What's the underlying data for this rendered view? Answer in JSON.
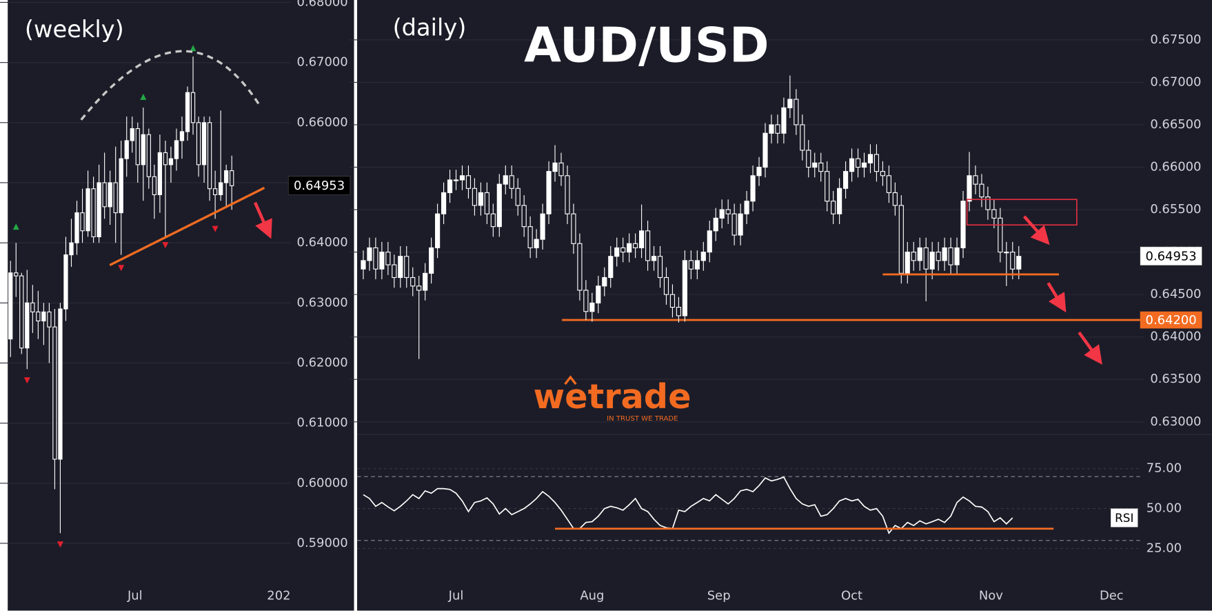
{
  "chart_data": [
    {
      "type": "candlestick",
      "title": "(weekly)",
      "open": [
        0.624,
        0.635,
        0.6345,
        0.6225,
        0.63,
        0.6285,
        0.627,
        0.6285,
        0.626,
        0.604,
        0.629,
        0.638,
        0.64,
        0.645,
        0.642,
        0.649,
        0.641,
        0.65,
        0.646,
        0.65,
        0.645,
        0.654,
        0.657,
        0.659,
        0.653,
        0.658,
        0.651,
        0.648,
        0.655,
        0.653,
        0.654,
        0.657,
        0.6585,
        0.665,
        0.66,
        0.653,
        0.66,
        0.649,
        0.648,
        0.65,
        0.652
      ],
      "high": [
        0.637,
        0.64,
        0.635,
        0.6355,
        0.633,
        0.632,
        0.63,
        0.63,
        0.629,
        0.63,
        0.641,
        0.644,
        0.647,
        0.649,
        0.652,
        0.651,
        0.653,
        0.655,
        0.652,
        0.656,
        0.657,
        0.661,
        0.661,
        0.66,
        0.6625,
        0.659,
        0.653,
        0.658,
        0.657,
        0.656,
        0.659,
        0.661,
        0.666,
        0.671,
        0.661,
        0.661,
        0.661,
        0.652,
        0.662,
        0.653,
        0.6545
      ],
      "low": [
        0.621,
        0.631,
        0.6215,
        0.619,
        0.625,
        0.624,
        0.623,
        0.62,
        0.599,
        0.5917,
        0.627,
        0.636,
        0.638,
        0.64,
        0.641,
        0.64,
        0.64,
        0.644,
        0.643,
        0.64,
        0.638,
        0.651,
        0.655,
        0.65,
        0.647,
        0.649,
        0.644,
        0.645,
        0.641,
        0.65,
        0.652,
        0.654,
        0.657,
        0.658,
        0.651,
        0.65,
        0.647,
        0.644,
        0.647,
        0.646,
        0.6455
      ],
      "close": [
        0.635,
        0.6345,
        0.6225,
        0.63,
        0.6285,
        0.627,
        0.6285,
        0.626,
        0.604,
        0.629,
        0.638,
        0.64,
        0.645,
        0.642,
        0.649,
        0.641,
        0.65,
        0.646,
        0.65,
        0.645,
        0.654,
        0.657,
        0.659,
        0.653,
        0.658,
        0.651,
        0.648,
        0.655,
        0.653,
        0.654,
        0.657,
        0.6585,
        0.665,
        0.66,
        0.653,
        0.66,
        0.649,
        0.648,
        0.65,
        0.652,
        0.6495
      ],
      "color_up": "#ffffff",
      "color_down": "#1c1c28",
      "wick_color": "#ffffff",
      "markers": [
        {
          "direction": "up",
          "color": "#22a845",
          "x": [
            1,
            24,
            33
          ],
          "y": [
            0.6427,
            0.6643,
            0.6724
          ]
        },
        {
          "direction": "down",
          "color": "#e3202e",
          "x": [
            3,
            9,
            20,
            28,
            37
          ],
          "y": [
            0.6171,
            0.5898,
            0.6358,
            0.6396,
            0.6423
          ]
        }
      ],
      "xlim": [
        -0.5,
        50.5
      ],
      "xticks": [
        {
          "value": 22.5,
          "label": "Jul"
        },
        {
          "value": 48.5,
          "label": "202"
        }
      ],
      "ylim": [
        0.5788,
        0.6804
      ],
      "yticks": [
        {
          "value": 0.59,
          "label": "0.59000"
        },
        {
          "value": 0.6,
          "label": "0.60000"
        },
        {
          "value": 0.61,
          "label": "0.61000"
        },
        {
          "value": 0.62,
          "label": "0.62000"
        },
        {
          "value": 0.63,
          "label": "0.63000"
        },
        {
          "value": 0.64,
          "label": "0.64000"
        },
        {
          "value": 0.65,
          "label": "0.65000"
        },
        {
          "value": 0.66,
          "label": "0.66000"
        },
        {
          "value": 0.67,
          "label": "0.67000"
        },
        {
          "value": 0.68,
          "label": "0.68000"
        }
      ],
      "grid": true,
      "last_price": {
        "value": 0.64953,
        "label": "0.64953"
      }
    },
    {
      "type": "candlestick",
      "title": "(daily)",
      "symbol": "AUD/USD",
      "open": [
        0.648,
        0.649,
        0.6505,
        0.648,
        0.65,
        0.6485,
        0.647,
        0.6495,
        0.647,
        0.646,
        0.6455,
        0.6475,
        0.6505,
        0.6545,
        0.657,
        0.6585,
        0.6585,
        0.659,
        0.6575,
        0.6555,
        0.657,
        0.6545,
        0.653,
        0.658,
        0.659,
        0.6575,
        0.6555,
        0.653,
        0.6505,
        0.6515,
        0.6545,
        0.6595,
        0.6605,
        0.659,
        0.6545,
        0.651,
        0.6455,
        0.643,
        0.644,
        0.646,
        0.647,
        0.6495,
        0.6505,
        0.65,
        0.651,
        0.6505,
        0.6525,
        0.649,
        0.6495,
        0.647,
        0.645,
        0.6435,
        0.6425,
        0.649,
        0.648,
        0.649,
        0.65,
        0.6525,
        0.654,
        0.655,
        0.6545,
        0.652,
        0.6545,
        0.656,
        0.659,
        0.66,
        0.664,
        0.665,
        0.664,
        0.667,
        0.668,
        0.665,
        0.662,
        0.66,
        0.6605,
        0.6595,
        0.656,
        0.6545,
        0.6575,
        0.6595,
        0.661,
        0.66,
        0.6605,
        0.6615,
        0.6595,
        0.659,
        0.657,
        0.6555,
        0.6475,
        0.65,
        0.649,
        0.6505,
        0.648,
        0.65,
        0.649,
        0.6505,
        0.6485,
        0.6505,
        0.656,
        0.659,
        0.658,
        0.6565,
        0.655,
        0.654,
        0.65,
        0.65,
        0.648
      ],
      "high": [
        0.6502,
        0.6517,
        0.6517,
        0.6512,
        0.6512,
        0.6497,
        0.6507,
        0.6507,
        0.6482,
        0.6472,
        0.6487,
        0.6517,
        0.6557,
        0.6582,
        0.6597,
        0.6597,
        0.6602,
        0.6602,
        0.6587,
        0.6582,
        0.6582,
        0.6557,
        0.6592,
        0.6602,
        0.6602,
        0.6587,
        0.6567,
        0.6542,
        0.6527,
        0.6557,
        0.6607,
        0.6626,
        0.6617,
        0.6602,
        0.6557,
        0.6522,
        0.6467,
        0.6452,
        0.6472,
        0.6482,
        0.6507,
        0.6517,
        0.6517,
        0.6522,
        0.6522,
        0.6556,
        0.6537,
        0.6507,
        0.6507,
        0.6482,
        0.6462,
        0.6447,
        0.6502,
        0.6502,
        0.6502,
        0.6512,
        0.6537,
        0.6552,
        0.6562,
        0.6562,
        0.6557,
        0.6557,
        0.6572,
        0.6602,
        0.6612,
        0.6652,
        0.6662,
        0.6662,
        0.6682,
        0.6708,
        0.6692,
        0.6662,
        0.6632,
        0.6617,
        0.6617,
        0.6607,
        0.6572,
        0.6587,
        0.6607,
        0.6622,
        0.6622,
        0.6617,
        0.6627,
        0.6627,
        0.6607,
        0.6602,
        0.6582,
        0.6567,
        0.6512,
        0.6512,
        0.6517,
        0.6517,
        0.6512,
        0.6512,
        0.6517,
        0.6517,
        0.6517,
        0.6572,
        0.6618,
        0.6602,
        0.6592,
        0.6577,
        0.6562,
        0.6552,
        0.6512,
        0.6512,
        0.6507
      ],
      "low": [
        0.6468,
        0.6478,
        0.6468,
        0.6468,
        0.6473,
        0.6458,
        0.6458,
        0.6458,
        0.6448,
        0.6374,
        0.6443,
        0.6463,
        0.6493,
        0.6533,
        0.6558,
        0.6573,
        0.6573,
        0.6563,
        0.6543,
        0.6543,
        0.6533,
        0.6518,
        0.6518,
        0.6568,
        0.6563,
        0.6543,
        0.6518,
        0.6493,
        0.6493,
        0.6503,
        0.6533,
        0.6583,
        0.6578,
        0.6533,
        0.6498,
        0.6443,
        0.642,
        0.6418,
        0.6428,
        0.6448,
        0.6458,
        0.6483,
        0.6488,
        0.6488,
        0.6493,
        0.6493,
        0.6478,
        0.6478,
        0.6458,
        0.6438,
        0.6423,
        0.6417,
        0.6418,
        0.6468,
        0.6468,
        0.6478,
        0.6488,
        0.6513,
        0.6528,
        0.6533,
        0.6508,
        0.6508,
        0.6533,
        0.6548,
        0.6578,
        0.6588,
        0.6628,
        0.6628,
        0.6628,
        0.6658,
        0.6638,
        0.6608,
        0.6588,
        0.6588,
        0.6583,
        0.6548,
        0.6533,
        0.6533,
        0.6563,
        0.6583,
        0.6588,
        0.6588,
        0.6593,
        0.6583,
        0.6578,
        0.6558,
        0.6543,
        0.6463,
        0.6463,
        0.6478,
        0.6478,
        0.6442,
        0.6468,
        0.6478,
        0.6478,
        0.6473,
        0.6473,
        0.6493,
        0.6548,
        0.6568,
        0.6553,
        0.6538,
        0.6528,
        0.6488,
        0.646,
        0.6468,
        0.6468
      ],
      "close": [
        0.649,
        0.6505,
        0.648,
        0.65,
        0.6485,
        0.647,
        0.6495,
        0.647,
        0.646,
        0.6455,
        0.6475,
        0.6505,
        0.6545,
        0.657,
        0.6585,
        0.6585,
        0.659,
        0.6575,
        0.6555,
        0.657,
        0.6545,
        0.653,
        0.658,
        0.659,
        0.6575,
        0.6555,
        0.653,
        0.6505,
        0.6515,
        0.6545,
        0.6595,
        0.6605,
        0.659,
        0.6545,
        0.651,
        0.6455,
        0.643,
        0.644,
        0.646,
        0.647,
        0.6495,
        0.6505,
        0.65,
        0.651,
        0.6505,
        0.6525,
        0.649,
        0.6495,
        0.647,
        0.645,
        0.6435,
        0.6425,
        0.649,
        0.648,
        0.649,
        0.65,
        0.6525,
        0.654,
        0.655,
        0.6545,
        0.652,
        0.6545,
        0.656,
        0.659,
        0.66,
        0.664,
        0.665,
        0.664,
        0.667,
        0.668,
        0.665,
        0.662,
        0.66,
        0.6605,
        0.6595,
        0.656,
        0.6545,
        0.6575,
        0.6595,
        0.661,
        0.66,
        0.6605,
        0.6615,
        0.6595,
        0.659,
        0.657,
        0.6555,
        0.6475,
        0.65,
        0.649,
        0.6505,
        0.648,
        0.65,
        0.649,
        0.6505,
        0.6485,
        0.6505,
        0.656,
        0.659,
        0.658,
        0.6565,
        0.655,
        0.654,
        0.65,
        0.65,
        0.648,
        0.6495
      ],
      "color_up": "#ffffff",
      "color_down": "#1c1c28",
      "wick_color": "#ffffff",
      "xlim": [
        -1,
        125
      ],
      "xticks": [
        {
          "value": 15,
          "label": "Jul"
        },
        {
          "value": 37,
          "label": "Aug"
        },
        {
          "value": 57.5,
          "label": "Sep"
        },
        {
          "value": 79,
          "label": "Oct"
        },
        {
          "value": 101.5,
          "label": "Nov"
        },
        {
          "value": 121,
          "label": "Dec"
        }
      ],
      "ylim": [
        0.6287,
        0.6797
      ],
      "yticks": [
        {
          "value": 0.63,
          "label": "0.63000"
        },
        {
          "value": 0.635,
          "label": "0.63500"
        },
        {
          "value": 0.64,
          "label": "0.64000"
        },
        {
          "value": 0.645,
          "label": "0.64500"
        },
        {
          "value": 0.65,
          "label": "0.65000"
        },
        {
          "value": 0.655,
          "label": "0.65500"
        },
        {
          "value": 0.66,
          "label": "0.66000"
        },
        {
          "value": 0.665,
          "label": "0.66500"
        },
        {
          "value": 0.67,
          "label": "0.67000"
        },
        {
          "value": 0.675,
          "label": "0.67500"
        }
      ],
      "grid": true,
      "last_price": {
        "value": 0.64953,
        "label": "0.64953"
      },
      "levels": [
        {
          "value": 0.642,
          "label": "0.64200",
          "color": "#f26b21"
        }
      ]
    },
    {
      "type": "line",
      "title": "RSI",
      "color": "#ffffff",
      "values": [
        58.7,
        56.3,
        51.4,
        53.8,
        51.0,
        48.6,
        51.4,
        54.8,
        58.7,
        56.3,
        61.1,
        59.6,
        62.5,
        62.5,
        62.0,
        59.6,
        54.8,
        48.1,
        53.8,
        54.8,
        56.7,
        52.9,
        46.6,
        50.0,
        46.2,
        48.1,
        50.0,
        52.9,
        56.3,
        60.6,
        57.7,
        53.8,
        49.0,
        43.3,
        37.5,
        37.5,
        41.3,
        41.8,
        45.2,
        50.0,
        51.4,
        50.5,
        49.0,
        52.4,
        56.3,
        50.0,
        48.1,
        43.3,
        39.4,
        38.0,
        37.5,
        49.0,
        48.1,
        51.4,
        53.8,
        56.3,
        54.8,
        58.7,
        55.8,
        52.9,
        56.3,
        61.1,
        62.0,
        60.6,
        64.4,
        69.2,
        67.3,
        68.3,
        69.7,
        62.5,
        56.3,
        52.9,
        51.4,
        52.4,
        45.2,
        46.2,
        50.0,
        54.8,
        56.3,
        54.8,
        55.8,
        51.4,
        49.0,
        50.0,
        45.2,
        34.6,
        39.4,
        37.5,
        41.3,
        39.4,
        42.3,
        40.4,
        41.8,
        43.3,
        41.3,
        45.2,
        53.8,
        57.2,
        54.8,
        51.4,
        51.0,
        48.1,
        41.8,
        44.2,
        40.4,
        44.2
      ],
      "xlim": [
        -1,
        125
      ],
      "ylim": [
        3,
        95
      ],
      "yticks": [
        {
          "value": 25,
          "label": "25.00"
        },
        {
          "value": 50,
          "label": "50.00"
        },
        {
          "value": 75,
          "label": "75.00"
        }
      ],
      "levels": [
        30,
        70
      ]
    }
  ],
  "watermark": {
    "brand": "wetrade",
    "tagline": "IN TRUST WE TRADE"
  }
}
